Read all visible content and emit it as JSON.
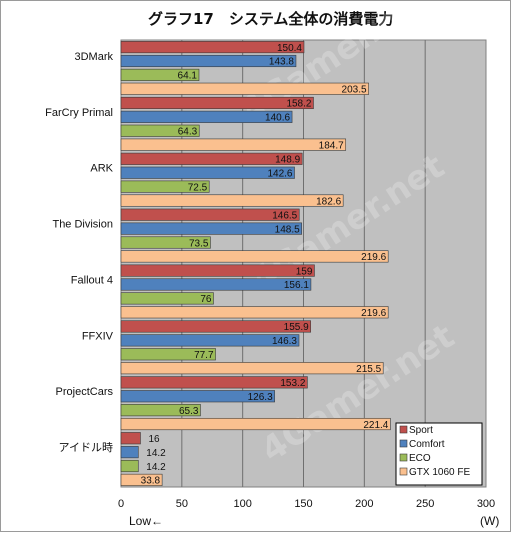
{
  "chart_data": {
    "type": "bar",
    "orientation": "horizontal",
    "title": "グラフ17　システム全体の消費電力",
    "categories": [
      "3DMark",
      "FarCry Primal",
      "ARK",
      "The Division",
      "Fallout 4",
      "FFXIV",
      "ProjectCars",
      "アイドル時"
    ],
    "series": [
      {
        "name": "Sport",
        "color": "#c0504d",
        "values": [
          150.4,
          158.2,
          148.9,
          146.5,
          159,
          155.9,
          153.2,
          16
        ]
      },
      {
        "name": "Comfort",
        "color": "#4f81bd",
        "values": [
          143.8,
          140.6,
          142.6,
          148.5,
          156.1,
          146.3,
          126.3,
          14.2
        ]
      },
      {
        "name": "ECO",
        "color": "#9bbb59",
        "values": [
          64.1,
          64.3,
          72.5,
          73.5,
          76,
          77.7,
          65.3,
          14.2
        ]
      },
      {
        "name": "GTX 1060 FE",
        "color": "#fac08f",
        "values": [
          203.5,
          184.7,
          182.6,
          219.6,
          219.6,
          215.5,
          221.4,
          33.8
        ]
      }
    ],
    "value_labels": [
      [
        "150.4",
        "158.2",
        "148.9",
        "146.5",
        "159",
        "155.9",
        "153.2",
        "16"
      ],
      [
        "143.8",
        "140.6",
        "142.6",
        "148.5",
        "156.1",
        "146.3",
        "126.3",
        "14.2"
      ],
      [
        "64.1",
        "64.3",
        "72.5",
        "73.5",
        "76",
        "77.7",
        "65.3",
        "14.2"
      ],
      [
        "203.5",
        "184.7",
        "182.6",
        "219.6",
        "219.6",
        "215.5",
        "221.4",
        "33.8"
      ]
    ],
    "xlim": [
      0,
      300
    ],
    "xticks": [
      "0",
      "50",
      "100",
      "150",
      "200",
      "250",
      "300"
    ],
    "xunit": "(W)",
    "direction_note": "Low←",
    "legend_position": "bottom-right",
    "grid": "vertical",
    "watermark": "4Gamer.net"
  }
}
